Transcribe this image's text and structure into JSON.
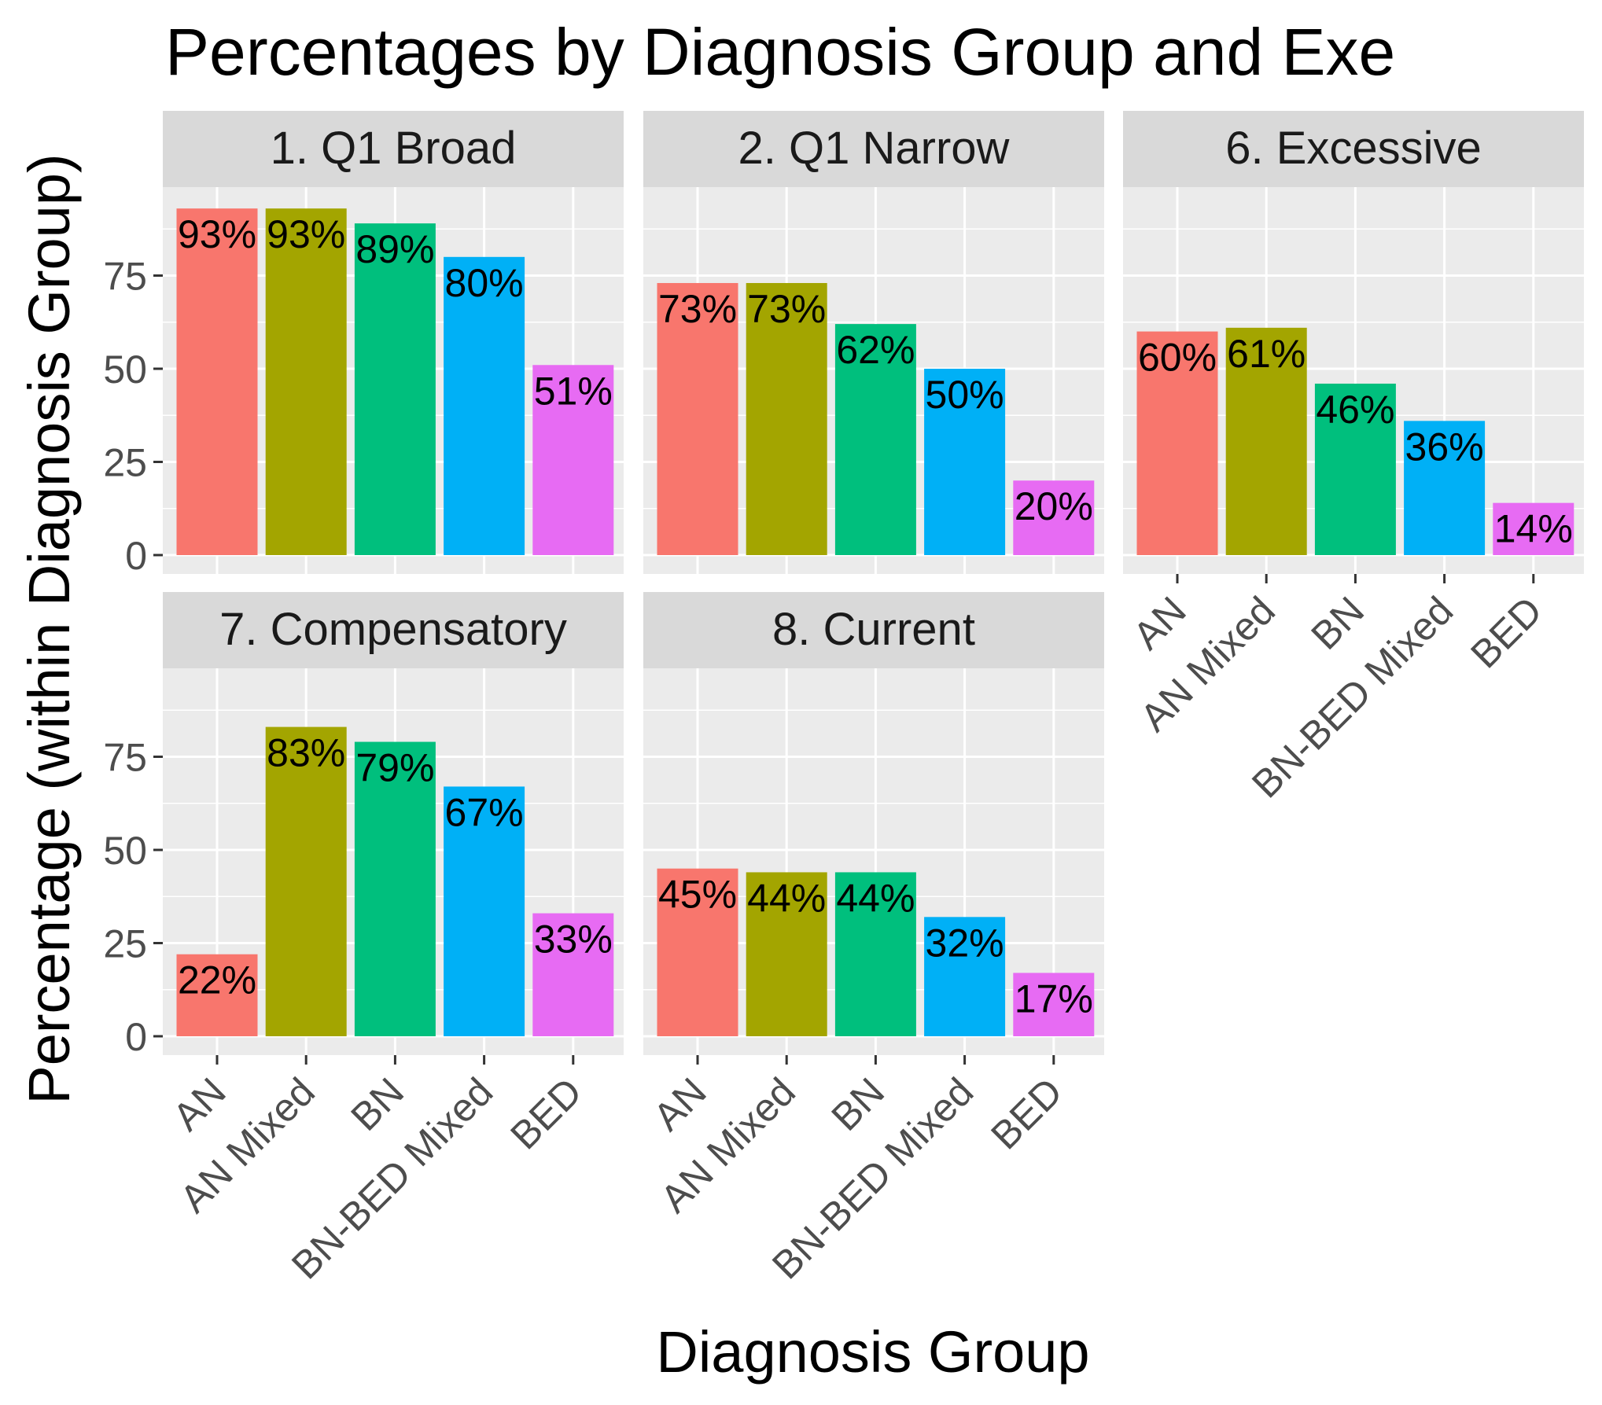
{
  "chart_data": {
    "type": "bar",
    "title": "Percentages by Diagnosis Group and Exe",
    "xlabel": "Diagnosis Group",
    "ylabel": "Percentage (within Diagnosis Group)",
    "categories": [
      "AN",
      "AN Mixed",
      "BN",
      "BN-BED Mixed",
      "BED"
    ],
    "colors": [
      "#F8766D",
      "#A3A500",
      "#00BF7D",
      "#00B0F6",
      "#E76BF3"
    ],
    "ylim": [
      0,
      100
    ],
    "yticks": [
      0,
      25,
      50,
      75
    ],
    "grid": true,
    "legend": "none",
    "panels": [
      {
        "name": "1. Q1 Broad",
        "values": [
          93,
          93,
          89,
          80,
          51
        ],
        "labels": [
          "93%",
          "93%",
          "89%",
          "80%",
          "51%"
        ]
      },
      {
        "name": "2. Q1 Narrow",
        "values": [
          73,
          73,
          62,
          50,
          20
        ],
        "labels": [
          "73%",
          "73%",
          "62%",
          "50%",
          "20%"
        ]
      },
      {
        "name": "6. Excessive",
        "values": [
          60,
          61,
          46,
          36,
          14
        ],
        "labels": [
          "60%",
          "61%",
          "46%",
          "36%",
          "14%"
        ]
      },
      {
        "name": "7. Compensatory",
        "values": [
          22,
          83,
          79,
          67,
          33
        ],
        "labels": [
          "22%",
          "83%",
          "79%",
          "67%",
          "33%"
        ]
      },
      {
        "name": "8. Current",
        "values": [
          45,
          44,
          44,
          32,
          17
        ],
        "labels": [
          "45%",
          "44%",
          "44%",
          "32%",
          "17%"
        ]
      }
    ]
  }
}
